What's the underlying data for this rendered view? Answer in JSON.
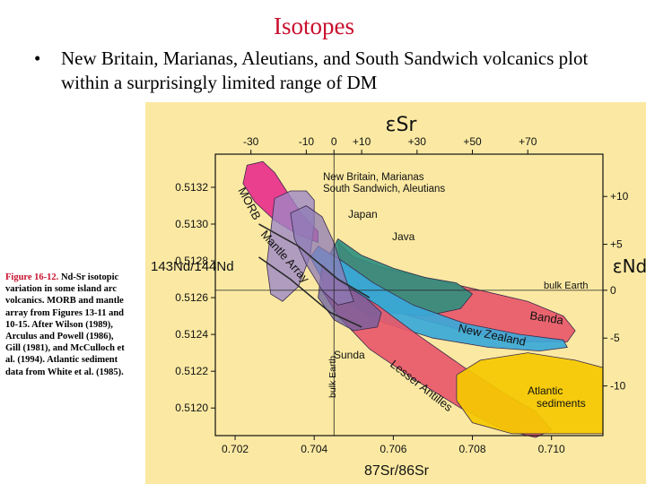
{
  "slide": {
    "title": "Isotopes",
    "bullet_marker": "•",
    "bullet": "New Britain, Marianas, Aleutians, and South Sandwich volcanics plot within a surprisingly limited range of DM"
  },
  "caption": {
    "figure_label": "Figure 16-12.",
    "text": " Nd-Sr isotopic variation in some island arc volcanics. MORB and mantle array from Figures 13-11 and 10-15. After Wilson (1989), Arculus and Powell (1986), Gill (1981), and McCulloch et al. (1994). Atlantic sediment data from White et al. (1985)."
  },
  "colors": {
    "background": "#fbe9a3",
    "morb": "#e8308c",
    "new_britain_field": "#9b86c7",
    "japan": "#8e7bb5",
    "java": "#2f8f7e",
    "banda": "#e8586a",
    "new_zealand": "#3aa8d8",
    "lesser_antilles": "#e8586a",
    "sunda": "#6a5fa3",
    "atlantic_sediments": "#f5c800",
    "mantle_array": "#2a2a2a",
    "title": "#c8102e"
  },
  "chart_data": {
    "type": "scatter",
    "xlabel_top": "εSr",
    "xlabel_bottom": "87Sr/86Sr",
    "ylabel_left": "143Nd/144Nd",
    "ylabel_right": "εNd",
    "xlim": [
      0.7015,
      0.7113
    ],
    "ylim": [
      0.51185,
      0.51338
    ],
    "x_ticks": [
      "0.702",
      "0.704",
      "0.706",
      "0.708",
      "0.710"
    ],
    "x_tick_values": [
      0.702,
      0.704,
      0.706,
      0.708,
      0.71
    ],
    "y_ticks": [
      "0.5120",
      "0.5122",
      "0.5124",
      "0.5126",
      "0.5128",
      "0.5130",
      "0.5132"
    ],
    "y_tick_values": [
      0.512,
      0.5122,
      0.5124,
      0.5126,
      0.5128,
      0.513,
      0.5132
    ],
    "top_ticks": [
      "-30",
      "-10",
      "0",
      "+10",
      "+30",
      "+50",
      "+70"
    ],
    "top_tick_values": [
      0.7024,
      0.7038,
      0.7045,
      0.7052,
      0.7066,
      0.708,
      0.7094
    ],
    "right_ticks": [
      "+10",
      "+5",
      "0",
      "-5",
      "-10"
    ],
    "right_tick_values": [
      0.51315,
      0.51289,
      0.51264,
      0.51238,
      0.51212
    ],
    "fields": [
      {
        "name": "MORB",
        "label": "MORB",
        "points": [
          [
            0.7022,
            0.51322
          ],
          [
            0.7023,
            0.51332
          ],
          [
            0.7027,
            0.51334
          ],
          [
            0.703,
            0.51328
          ],
          [
            0.7033,
            0.51318
          ],
          [
            0.7037,
            0.51305
          ],
          [
            0.7041,
            0.51296
          ],
          [
            0.7041,
            0.5129
          ],
          [
            0.7036,
            0.51294
          ],
          [
            0.703,
            0.51302
          ],
          [
            0.7025,
            0.51312
          ]
        ]
      },
      {
        "name": "Banda",
        "label": "Banda",
        "points": [
          [
            0.7046,
            0.5129
          ],
          [
            0.705,
            0.51282
          ],
          [
            0.7058,
            0.51276
          ],
          [
            0.7068,
            0.51271
          ],
          [
            0.708,
            0.51265
          ],
          [
            0.7094,
            0.51258
          ],
          [
            0.7103,
            0.5125
          ],
          [
            0.7106,
            0.51242
          ],
          [
            0.7104,
            0.51236
          ],
          [
            0.7092,
            0.51236
          ],
          [
            0.7078,
            0.51242
          ],
          [
            0.7064,
            0.5125
          ],
          [
            0.7054,
            0.51262
          ],
          [
            0.7047,
            0.51276
          ]
        ]
      },
      {
        "name": "Java",
        "label": "Java",
        "points": [
          [
            0.7046,
            0.51292
          ],
          [
            0.7052,
            0.51283
          ],
          [
            0.706,
            0.51276
          ],
          [
            0.7068,
            0.51271
          ],
          [
            0.7076,
            0.51268
          ],
          [
            0.708,
            0.51262
          ],
          [
            0.7077,
            0.51254
          ],
          [
            0.7068,
            0.5125
          ],
          [
            0.7058,
            0.51252
          ],
          [
            0.705,
            0.5126
          ],
          [
            0.7045,
            0.51272
          ],
          [
            0.7044,
            0.51284
          ]
        ]
      },
      {
        "name": "New Zealand",
        "label": "New Zealand",
        "points": [
          [
            0.7041,
            0.51288
          ],
          [
            0.7047,
            0.5128
          ],
          [
            0.7055,
            0.51268
          ],
          [
            0.7065,
            0.51256
          ],
          [
            0.7078,
            0.51246
          ],
          [
            0.7092,
            0.5124
          ],
          [
            0.7103,
            0.51237
          ],
          [
            0.7104,
            0.51233
          ],
          [
            0.7097,
            0.51231
          ],
          [
            0.7084,
            0.51233
          ],
          [
            0.707,
            0.51238
          ],
          [
            0.7058,
            0.51246
          ],
          [
            0.7049,
            0.51256
          ],
          [
            0.7042,
            0.5127
          ],
          [
            0.7039,
            0.51282
          ]
        ]
      },
      {
        "name": "Lesser Antilles",
        "label": "Lesser Antilles",
        "points": [
          [
            0.7042,
            0.51275
          ],
          [
            0.7047,
            0.51268
          ],
          [
            0.7056,
            0.51256
          ],
          [
            0.7066,
            0.5124
          ],
          [
            0.7078,
            0.51222
          ],
          [
            0.7088,
            0.51208
          ],
          [
            0.7096,
            0.51198
          ],
          [
            0.71,
            0.51188
          ],
          [
            0.7096,
            0.51184
          ],
          [
            0.7088,
            0.51188
          ],
          [
            0.7077,
            0.512
          ],
          [
            0.7065,
            0.51216
          ],
          [
            0.7054,
            0.51232
          ],
          [
            0.7046,
            0.5125
          ],
          [
            0.7042,
            0.51264
          ]
        ]
      },
      {
        "name": "Sunda",
        "label": "Sunda",
        "points": [
          [
            0.7042,
            0.51278
          ],
          [
            0.7047,
            0.51268
          ],
          [
            0.7053,
            0.5126
          ],
          [
            0.7057,
            0.51252
          ],
          [
            0.7056,
            0.51244
          ],
          [
            0.705,
            0.51242
          ],
          [
            0.7045,
            0.51248
          ],
          [
            0.7041,
            0.5126
          ]
        ]
      },
      {
        "name": "New Britain, Marianas, South Sandwich, Aleutians",
        "label": "New Britain, Marianas South Sandwich, Aleutians",
        "points": [
          [
            0.703,
            0.51314
          ],
          [
            0.7034,
            0.51318
          ],
          [
            0.7038,
            0.51318
          ],
          [
            0.704,
            0.51313
          ],
          [
            0.704,
            0.513
          ],
          [
            0.7039,
            0.51283
          ],
          [
            0.7036,
            0.51266
          ],
          [
            0.7032,
            0.51258
          ],
          [
            0.7029,
            0.51262
          ],
          [
            0.7028,
            0.51278
          ],
          [
            0.7029,
            0.51296
          ]
        ]
      },
      {
        "name": "Japan",
        "label": "Japan",
        "points": [
          [
            0.7034,
            0.51306
          ],
          [
            0.7038,
            0.5131
          ],
          [
            0.7042,
            0.51304
          ],
          [
            0.7045,
            0.5129
          ],
          [
            0.7048,
            0.5127
          ],
          [
            0.705,
            0.51258
          ],
          [
            0.7046,
            0.51256
          ],
          [
            0.7042,
            0.51264
          ],
          [
            0.7038,
            0.51278
          ],
          [
            0.7035,
            0.51292
          ]
        ]
      },
      {
        "name": "Atlantic sediments",
        "label": "Atlantic sediments",
        "points": [
          [
            0.7076,
            0.51218
          ],
          [
            0.7082,
            0.51226
          ],
          [
            0.7094,
            0.5123
          ],
          [
            0.7106,
            0.51226
          ],
          [
            0.7113,
            0.51222
          ],
          [
            0.7113,
            0.51186
          ],
          [
            0.709,
            0.51186
          ],
          [
            0.708,
            0.51192
          ],
          [
            0.7076,
            0.51204
          ]
        ]
      }
    ],
    "mantle_array": {
      "label": "Mantle Array",
      "upper": [
        [
          0.7026,
          0.513
        ],
        [
          0.7036,
          0.51288
        ],
        [
          0.7046,
          0.5127
        ],
        [
          0.7054,
          0.5126
        ]
      ],
      "lower": [
        [
          0.7026,
          0.51282
        ],
        [
          0.7034,
          0.5127
        ],
        [
          0.7044,
          0.51252
        ],
        [
          0.7052,
          0.51244
        ]
      ]
    },
    "bulk_earth": {
      "label_horizontal": "bulk Earth",
      "label_vertical": "bulk Earth",
      "nd": 0.51264,
      "sr": 0.7045
    }
  }
}
